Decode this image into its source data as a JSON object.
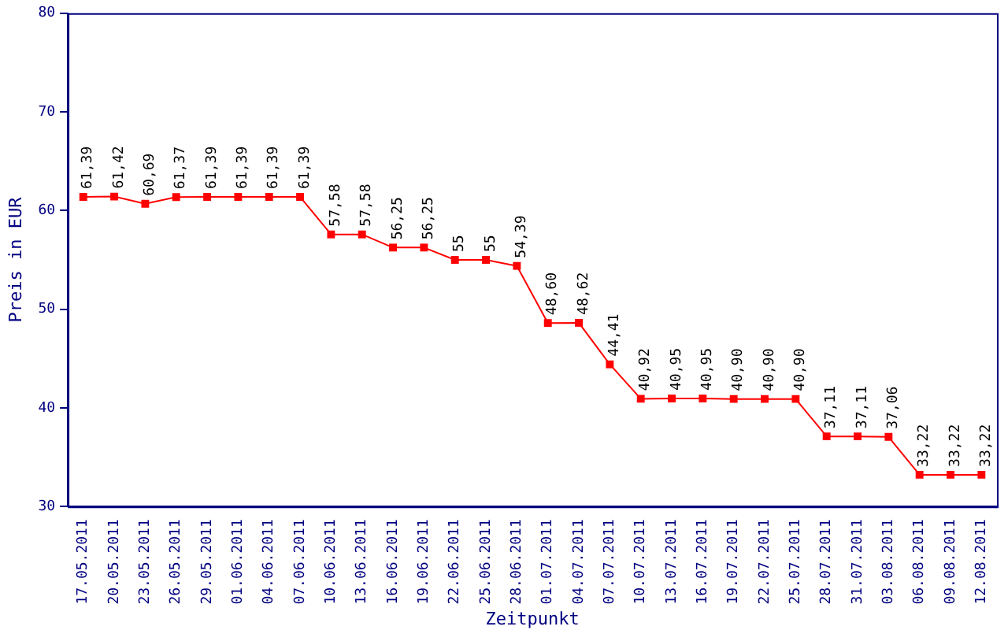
{
  "chart_data": {
    "type": "line",
    "xlabel": "Zeitpunkt",
    "ylabel": "Preis in EUR",
    "categories": [
      "17.05.2011",
      "20.05.2011",
      "23.05.2011",
      "26.05.2011",
      "29.05.2011",
      "01.06.2011",
      "04.06.2011",
      "07.06.2011",
      "10.06.2011",
      "13.06.2011",
      "16.06.2011",
      "19.06.2011",
      "22.06.2011",
      "25.06.2011",
      "28.06.2011",
      "01.07.2011",
      "04.07.2011",
      "07.07.2011",
      "10.07.2011",
      "13.07.2011",
      "16.07.2011",
      "19.07.2011",
      "22.07.2011",
      "25.07.2011",
      "28.07.2011",
      "31.07.2011",
      "03.08.2011",
      "06.08.2011",
      "09.08.2011",
      "12.08.2011"
    ],
    "series": [
      {
        "color": "#ff0000",
        "values": [
          61.39,
          61.42,
          60.69,
          61.37,
          61.39,
          61.39,
          61.39,
          61.39,
          57.58,
          57.58,
          56.25,
          56.25,
          55,
          55,
          54.39,
          48.6,
          48.62,
          44.41,
          40.92,
          40.95,
          40.95,
          40.9,
          40.9,
          40.9,
          37.11,
          37.11,
          37.06,
          33.22,
          33.22,
          33.22
        ],
        "value_labels": [
          "61,39",
          "61,42",
          "60,69",
          "61,37",
          "61,39",
          "61,39",
          "61,39",
          "61,39",
          "57,58",
          "57,58",
          "56,25",
          "56,25",
          "55",
          "55",
          "54,39",
          "48,60",
          "48,62",
          "44,41",
          "40,92",
          "40,95",
          "40,95",
          "40,90",
          "40,90",
          "40,90",
          "37,11",
          "37,11",
          "37,06",
          "33,22",
          "33,22",
          "33,22"
        ]
      }
    ],
    "ylim": [
      30,
      80
    ],
    "yticks": [
      30,
      40,
      50,
      60,
      70,
      80
    ],
    "grid": false,
    "legend": false,
    "marker": "square",
    "line_style": "solid"
  }
}
